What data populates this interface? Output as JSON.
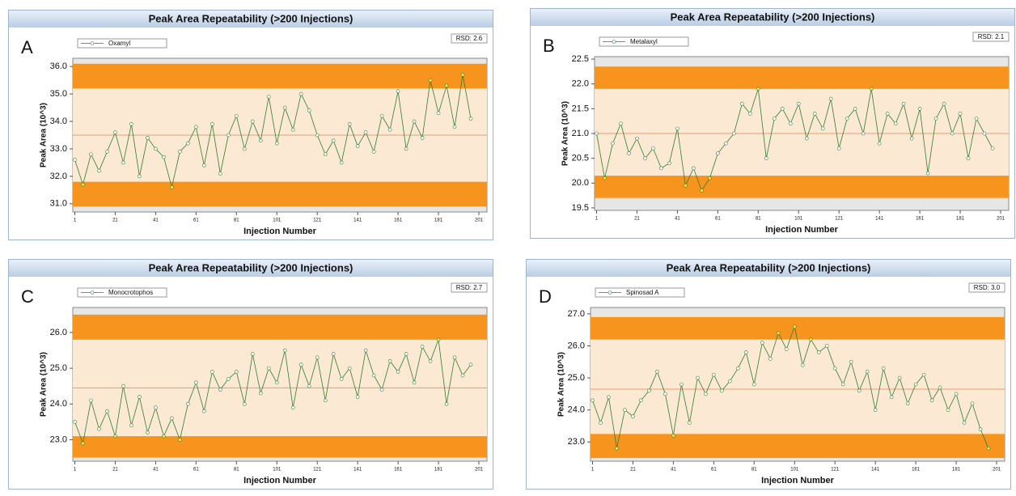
{
  "chart_data": [
    {
      "type": "line",
      "panel": "A",
      "title": "Peak Area Repeatability (>200 Injections)",
      "rsd_label": "RSD: 2.6",
      "ylabel": "Peak Area (10^3)",
      "xlabel": "Injection Number",
      "ylim": [
        30.7,
        36.3
      ],
      "yticks": [
        {
          "value": 31,
          "label": "31.0"
        },
        {
          "value": 32,
          "label": "32.0"
        },
        {
          "value": 33,
          "label": "33.0"
        },
        {
          "value": 34,
          "label": "34.0"
        },
        {
          "value": 35,
          "label": "35.0"
        },
        {
          "value": 36,
          "label": "36.0"
        }
      ],
      "xlim": [
        0,
        205
      ],
      "xticks": [
        1,
        21,
        41,
        61,
        81,
        101,
        121,
        141,
        161,
        181,
        201
      ],
      "upper_band": [
        35.2,
        36.1
      ],
      "lower_band": [
        30.9,
        31.8
      ],
      "mean": 33.5,
      "band_color": "#f7941d",
      "inner_color": "#fbe9d3",
      "mean_color": "#e59a7a",
      "x": [
        1,
        5,
        9,
        13,
        17,
        21,
        25,
        29,
        33,
        37,
        41,
        45,
        49,
        53,
        57,
        61,
        65,
        69,
        73,
        77,
        81,
        85,
        89,
        93,
        97,
        101,
        105,
        109,
        113,
        117,
        121,
        125,
        129,
        133,
        137,
        141,
        145,
        149,
        153,
        157,
        161,
        165,
        169,
        173,
        177,
        181,
        185,
        189,
        193,
        197
      ],
      "series": [
        {
          "name": "Oxamyl",
          "color": "#2e7d32",
          "values": [
            32.6,
            31.7,
            32.8,
            32.2,
            32.9,
            33.6,
            32.5,
            33.9,
            32.0,
            33.4,
            33.0,
            32.7,
            31.6,
            32.9,
            33.2,
            33.8,
            32.4,
            33.9,
            32.1,
            33.5,
            34.2,
            33.0,
            34.0,
            33.3,
            34.9,
            33.2,
            34.5,
            33.7,
            35.0,
            34.4,
            33.5,
            32.8,
            33.3,
            32.5,
            33.9,
            33.1,
            33.6,
            32.9,
            34.2,
            33.7,
            35.1,
            33.0,
            34.0,
            33.4,
            35.5,
            34.3,
            35.3,
            33.8,
            35.7,
            34.1
          ]
        }
      ]
    },
    {
      "type": "line",
      "panel": "B",
      "title": "Peak Area Repeatability (>200 Injections)",
      "rsd_label": "RSD: 2.1",
      "ylabel": "Peak Area (10^3)",
      "xlabel": "Injection Number",
      "ylim": [
        19.45,
        22.55
      ],
      "yticks": [
        19.5,
        {
          "value": 20,
          "label": "20.0"
        },
        20.5,
        {
          "value": 21,
          "label": "21.0"
        },
        21.5,
        {
          "value": 22,
          "label": "22.0"
        },
        22.5
      ],
      "xlim": [
        0,
        205
      ],
      "xticks": [
        1,
        21,
        41,
        61,
        81,
        101,
        121,
        141,
        161,
        181,
        201
      ],
      "upper_band": [
        21.9,
        22.35
      ],
      "lower_band": [
        19.7,
        20.15
      ],
      "mean": 21.0,
      "band_color": "#f7941d",
      "inner_color": "#fbe9d3",
      "mean_color": "#e59a7a",
      "x": [
        1,
        5,
        9,
        13,
        17,
        21,
        25,
        29,
        33,
        37,
        41,
        45,
        49,
        53,
        57,
        61,
        65,
        69,
        73,
        77,
        81,
        85,
        89,
        93,
        97,
        101,
        105,
        109,
        113,
        117,
        121,
        125,
        129,
        133,
        137,
        141,
        145,
        149,
        153,
        157,
        161,
        165,
        169,
        173,
        177,
        181,
        185,
        189,
        193,
        197
      ],
      "series": [
        {
          "name": "Metalaxyl",
          "color": "#2e7d32",
          "values": [
            21.0,
            20.1,
            20.8,
            21.2,
            20.6,
            20.9,
            20.5,
            20.7,
            20.3,
            20.4,
            21.1,
            19.95,
            20.3,
            19.85,
            20.1,
            20.6,
            20.8,
            21.0,
            21.6,
            21.4,
            21.9,
            20.5,
            21.3,
            21.5,
            21.2,
            21.6,
            20.9,
            21.4,
            21.1,
            21.7,
            20.7,
            21.3,
            21.5,
            21.0,
            21.9,
            20.8,
            21.4,
            21.2,
            21.6,
            20.9,
            21.5,
            20.2,
            21.3,
            21.6,
            21.0,
            21.4,
            20.5,
            21.3,
            21.0,
            20.7
          ]
        }
      ]
    },
    {
      "type": "line",
      "panel": "C",
      "title": "Peak Area Repeatability (>200 Injections)",
      "rsd_label": "RSD: 2.7",
      "ylabel": "Peak Area (10^3)",
      "xlabel": "Injection Number",
      "ylim": [
        22.4,
        26.7
      ],
      "yticks": [
        {
          "value": 23,
          "label": "23.0"
        },
        {
          "value": 24,
          "label": "24.0"
        },
        {
          "value": 25,
          "label": "25.0"
        },
        {
          "value": 26,
          "label": "26.0"
        }
      ],
      "xlim": [
        0,
        205
      ],
      "xticks": [
        1,
        21,
        41,
        61,
        81,
        101,
        121,
        141,
        161,
        181,
        201
      ],
      "upper_band": [
        25.8,
        26.5
      ],
      "lower_band": [
        22.5,
        23.1
      ],
      "mean": 24.45,
      "band_color": "#f7941d",
      "inner_color": "#fbe9d3",
      "mean_color": "#e59a7a",
      "x": [
        1,
        5,
        9,
        13,
        17,
        21,
        25,
        29,
        33,
        37,
        41,
        45,
        49,
        53,
        57,
        61,
        65,
        69,
        73,
        77,
        81,
        85,
        89,
        93,
        97,
        101,
        105,
        109,
        113,
        117,
        121,
        125,
        129,
        133,
        137,
        141,
        145,
        149,
        153,
        157,
        161,
        165,
        169,
        173,
        177,
        181,
        185,
        189,
        193,
        197
      ],
      "series": [
        {
          "name": "Monocrotophos",
          "color": "#2e7d32",
          "values": [
            23.5,
            22.9,
            24.1,
            23.3,
            23.8,
            23.1,
            24.5,
            23.4,
            24.2,
            23.2,
            23.9,
            23.1,
            23.6,
            23.0,
            24.0,
            24.6,
            23.8,
            24.9,
            24.4,
            24.7,
            24.9,
            24.0,
            25.4,
            24.3,
            25.0,
            24.6,
            25.5,
            23.9,
            25.1,
            24.5,
            25.3,
            24.1,
            25.4,
            24.7,
            25.0,
            24.2,
            25.5,
            24.8,
            24.4,
            25.2,
            24.9,
            25.4,
            24.6,
            25.6,
            25.2,
            25.8,
            24.0,
            25.3,
            24.8,
            25.1
          ]
        }
      ]
    },
    {
      "type": "line",
      "panel": "D",
      "title": "Peak Area Repeatability (>200 Injections)",
      "rsd_label": "RSD: 3.0",
      "ylabel": "Peak Area (10^3)",
      "xlabel": "Injection Number",
      "ylim": [
        22.4,
        27.2
      ],
      "yticks": [
        {
          "value": 23,
          "label": "23.0"
        },
        {
          "value": 24,
          "label": "24.0"
        },
        {
          "value": 25,
          "label": "25.0"
        },
        {
          "value": 26,
          "label": "26.0"
        },
        {
          "value": 27,
          "label": "27.0"
        }
      ],
      "xlim": [
        0,
        205
      ],
      "xticks": [
        1,
        21,
        41,
        61,
        81,
        101,
        121,
        141,
        161,
        181,
        201
      ],
      "upper_band": [
        26.2,
        26.9
      ],
      "lower_band": [
        22.5,
        23.25
      ],
      "mean": 24.65,
      "band_color": "#f7941d",
      "inner_color": "#fbe9d3",
      "mean_color": "#e59a7a",
      "x": [
        1,
        5,
        9,
        13,
        17,
        21,
        25,
        29,
        33,
        37,
        41,
        45,
        49,
        53,
        57,
        61,
        65,
        69,
        73,
        77,
        81,
        85,
        89,
        93,
        97,
        101,
        105,
        109,
        113,
        117,
        121,
        125,
        129,
        133,
        137,
        141,
        145,
        149,
        153,
        157,
        161,
        165,
        169,
        173,
        177,
        181,
        185,
        189,
        193,
        197
      ],
      "series": [
        {
          "name": "Spinosad A",
          "color": "#2e7d32",
          "values": [
            24.3,
            23.6,
            24.4,
            22.8,
            24.0,
            23.8,
            24.3,
            24.6,
            25.2,
            24.5,
            23.2,
            24.8,
            23.6,
            25.0,
            24.5,
            25.1,
            24.6,
            24.9,
            25.3,
            25.8,
            24.8,
            26.1,
            25.6,
            26.4,
            25.9,
            26.6,
            25.4,
            26.2,
            25.8,
            26.0,
            25.3,
            24.8,
            25.5,
            24.6,
            25.2,
            24.0,
            25.3,
            24.4,
            25.0,
            24.2,
            24.8,
            25.1,
            24.3,
            24.7,
            24.0,
            24.5,
            23.6,
            24.2,
            23.4,
            22.8
          ]
        }
      ]
    }
  ]
}
